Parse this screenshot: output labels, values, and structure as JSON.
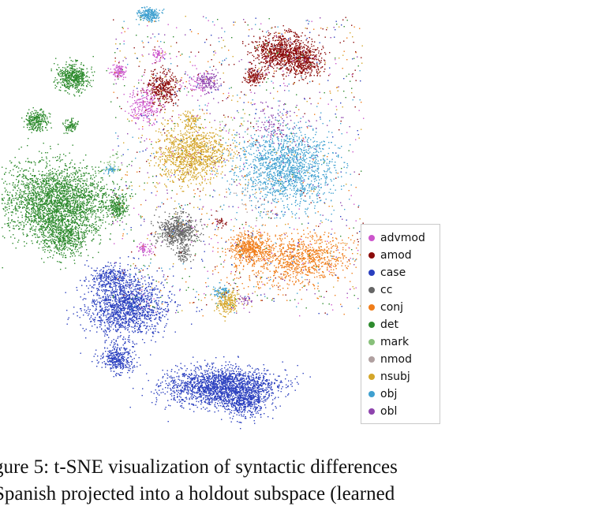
{
  "chart_data": {
    "type": "scatter",
    "title": "",
    "xlabel": "",
    "ylabel": "",
    "grid": false,
    "legend_placement": "right",
    "series": [
      {
        "name": "advmod",
        "color": "#cc55cc"
      },
      {
        "name": "amod",
        "color": "#8b0a0a"
      },
      {
        "name": "case",
        "color": "#2a3fbf"
      },
      {
        "name": "cc",
        "color": "#666666"
      },
      {
        "name": "conj",
        "color": "#f07d1a"
      },
      {
        "name": "det",
        "color": "#2e8b2e"
      },
      {
        "name": "mark",
        "color": "#88c07a"
      },
      {
        "name": "nmod",
        "color": "#b0a0a0"
      },
      {
        "name": "nsubj",
        "color": "#d4a62a"
      },
      {
        "name": "obj",
        "color": "#3fa0d0"
      },
      {
        "name": "obl",
        "color": "#8e44ad"
      }
    ]
  },
  "caption": {
    "line1": "gure 5: t-SNE visualization of syntactic differences",
    "line2": "Spanish projected into a holdout subspace (learned"
  }
}
